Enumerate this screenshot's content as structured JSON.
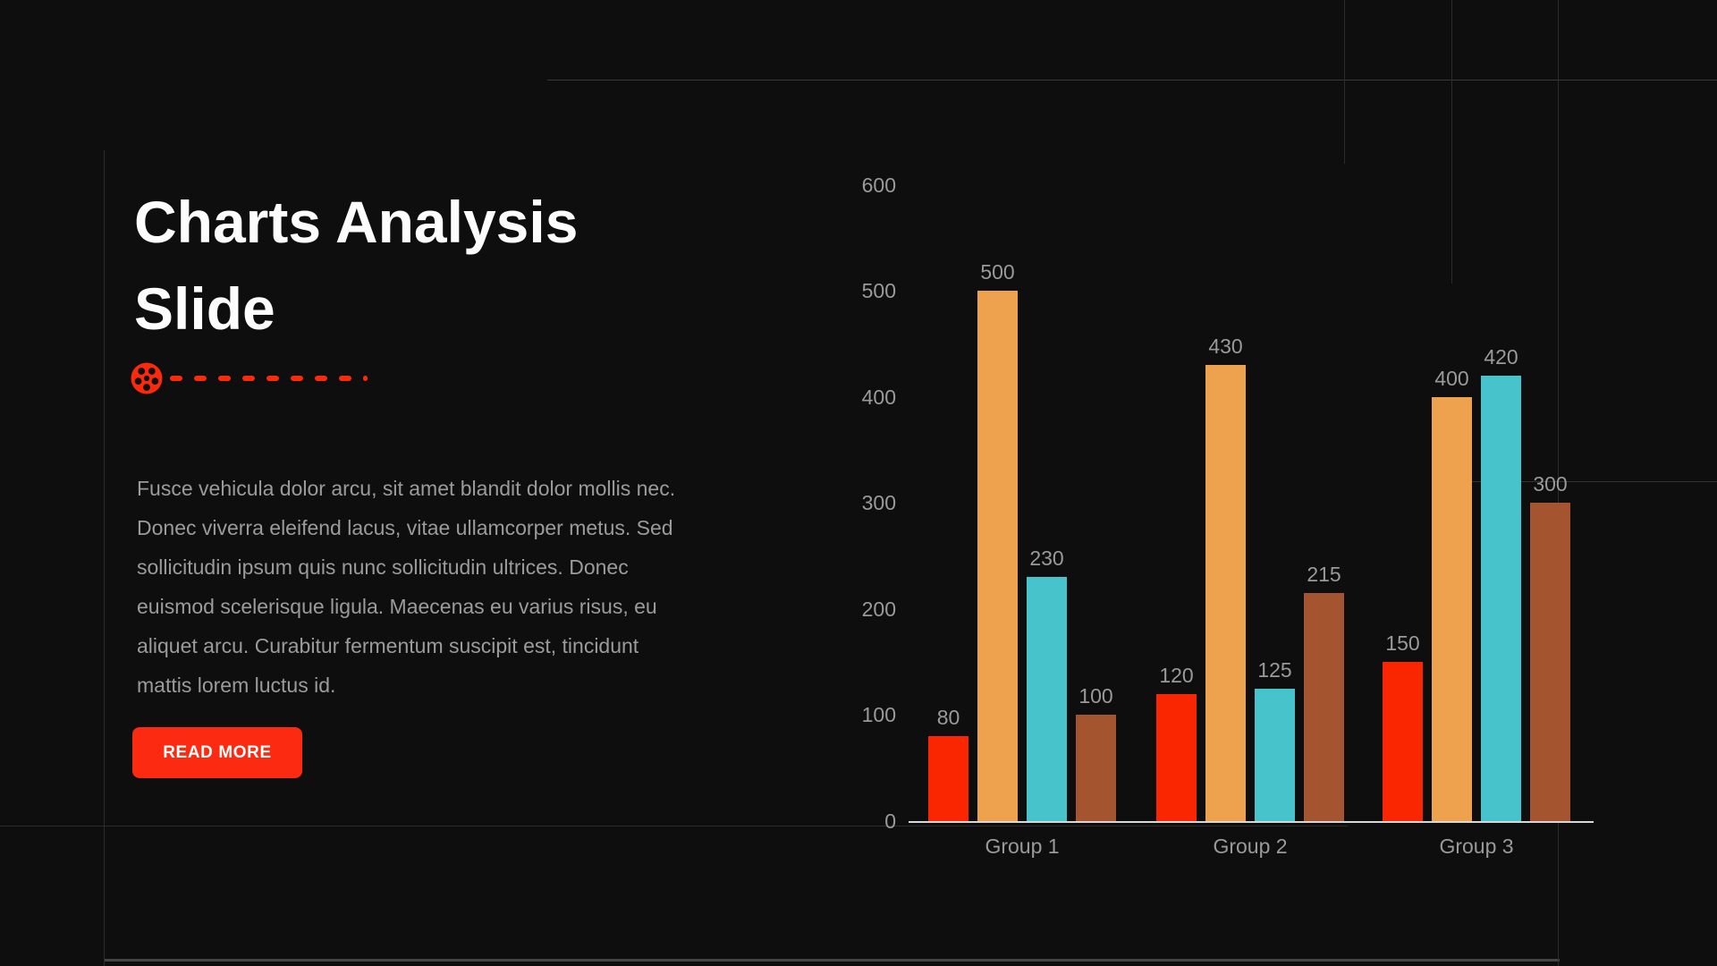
{
  "page": {
    "title": "Charts Analysis\nSlide",
    "description": "Fusce vehicula dolor arcu, sit amet blandit dolor mollis nec.\nDonec viverra eleifend lacus, vitae ullamcorper metus. Sed\nsollicitudin ipsum quis nunc sollicitudin ultrices. Donec\neuismod scelerisque ligula. Maecenas eu varius risus, eu\naliquet arcu. Curabitur fermentum suscipit est, tincidunt\nmattis lorem luctus id.",
    "read_more_label": "READ MORE"
  },
  "colors": {
    "background": "#0e0e0e",
    "accent_red": "#fb2a10",
    "title_text": "#fdfdfd",
    "body_text": "#9b9b9b",
    "chart_label_gray": "#9a9a9a",
    "axis_line": "#d8d8d8"
  },
  "chart_data": {
    "type": "bar",
    "title": "",
    "xlabel": "",
    "ylabel": "",
    "categories": [
      "Group 1",
      "Group 2",
      "Group 3"
    ],
    "series": [
      {
        "name": "red",
        "color": "#fa2602",
        "values": [
          80,
          120,
          150
        ]
      },
      {
        "name": "orange",
        "color": "#efa24e",
        "values": [
          500,
          430,
          400
        ]
      },
      {
        "name": "teal",
        "color": "#46c3cb",
        "values": [
          230,
          125,
          420
        ]
      },
      {
        "name": "brown",
        "color": "#a4552f",
        "values": [
          100,
          215,
          300
        ]
      }
    ],
    "yticks": [
      600,
      500,
      400,
      300,
      200,
      100,
      0
    ],
    "ylim": [
      0,
      600
    ],
    "grid": false,
    "legend": false,
    "value_labels": true
  }
}
